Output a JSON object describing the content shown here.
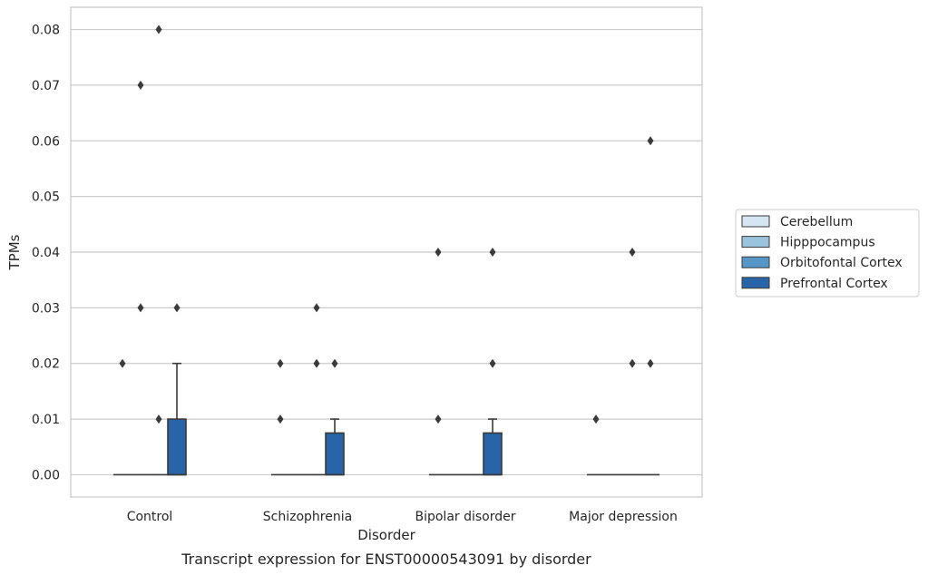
{
  "chart_data": {
    "type": "box",
    "xlabel": "Disorder",
    "ylabel": "TPMs",
    "caption": "Transcript expression for ENST00000543091 by disorder",
    "ylim": [
      -0.004,
      0.084
    ],
    "yticks": [
      0.0,
      0.01,
      0.02,
      0.03,
      0.04,
      0.05,
      0.06,
      0.07,
      0.08
    ],
    "ytick_labels": [
      "0.00",
      "0.01",
      "0.02",
      "0.03",
      "0.04",
      "0.05",
      "0.06",
      "0.07",
      "0.08"
    ],
    "grid": "horizontal",
    "legend_position": "right",
    "categories": [
      "Control",
      "Schizophrenia",
      "Bipolar disorder",
      "Major depression"
    ],
    "series": [
      {
        "name": "Cerebellum",
        "color": "#d6e5f2",
        "boxes": [
          {
            "q1": 0,
            "median": 0,
            "q3": 0,
            "whislo": 0,
            "whishi": 0,
            "fliers": [
              0.02
            ]
          },
          {
            "q1": 0,
            "median": 0,
            "q3": 0,
            "whislo": 0,
            "whishi": 0,
            "fliers": [
              0.02,
              0.01
            ]
          },
          {
            "q1": 0,
            "median": 0,
            "q3": 0,
            "whislo": 0,
            "whishi": 0,
            "fliers": [
              0.04,
              0.01
            ]
          },
          {
            "q1": 0,
            "median": 0,
            "q3": 0,
            "whislo": 0,
            "whishi": 0,
            "fliers": [
              0.01
            ]
          }
        ]
      },
      {
        "name": "Hipppocampus",
        "color": "#9ac3de",
        "boxes": [
          {
            "q1": 0,
            "median": 0,
            "q3": 0,
            "whislo": 0,
            "whishi": 0,
            "fliers": [
              0.07,
              0.03
            ]
          },
          {
            "q1": 0,
            "median": 0,
            "q3": 0,
            "whislo": 0,
            "whishi": 0,
            "fliers": []
          },
          {
            "q1": 0,
            "median": 0,
            "q3": 0,
            "whislo": 0,
            "whishi": 0,
            "fliers": []
          },
          {
            "q1": 0,
            "median": 0,
            "q3": 0,
            "whislo": 0,
            "whishi": 0,
            "fliers": []
          }
        ]
      },
      {
        "name": "Orbitofontal Cortex",
        "color": "#5596c6",
        "boxes": [
          {
            "q1": 0,
            "median": 0,
            "q3": 0,
            "whislo": 0,
            "whishi": 0,
            "fliers": [
              0.08,
              0.01
            ]
          },
          {
            "q1": 0,
            "median": 0,
            "q3": 0,
            "whislo": 0,
            "whishi": 0,
            "fliers": [
              0.03,
              0.02
            ]
          },
          {
            "q1": 0,
            "median": 0,
            "q3": 0,
            "whislo": 0,
            "whishi": 0,
            "fliers": []
          },
          {
            "q1": 0,
            "median": 0,
            "q3": 0,
            "whislo": 0,
            "whishi": 0,
            "fliers": [
              0.04,
              0.02
            ]
          }
        ]
      },
      {
        "name": "Prefrontal Cortex",
        "color": "#2764a8",
        "boxes": [
          {
            "q1": 0,
            "median": 0,
            "q3": 0.01,
            "whislo": 0,
            "whishi": 0.02,
            "fliers": [
              0.03
            ]
          },
          {
            "q1": 0,
            "median": 0,
            "q3": 0.0075,
            "whislo": 0,
            "whishi": 0.01,
            "fliers": [
              0.02
            ]
          },
          {
            "q1": 0,
            "median": 0,
            "q3": 0.0075,
            "whislo": 0,
            "whishi": 0.01,
            "fliers": [
              0.04,
              0.02
            ]
          },
          {
            "q1": 0,
            "median": 0,
            "q3": 0,
            "whislo": 0,
            "whishi": 0,
            "fliers": [
              0.06,
              0.02
            ]
          }
        ]
      }
    ]
  }
}
